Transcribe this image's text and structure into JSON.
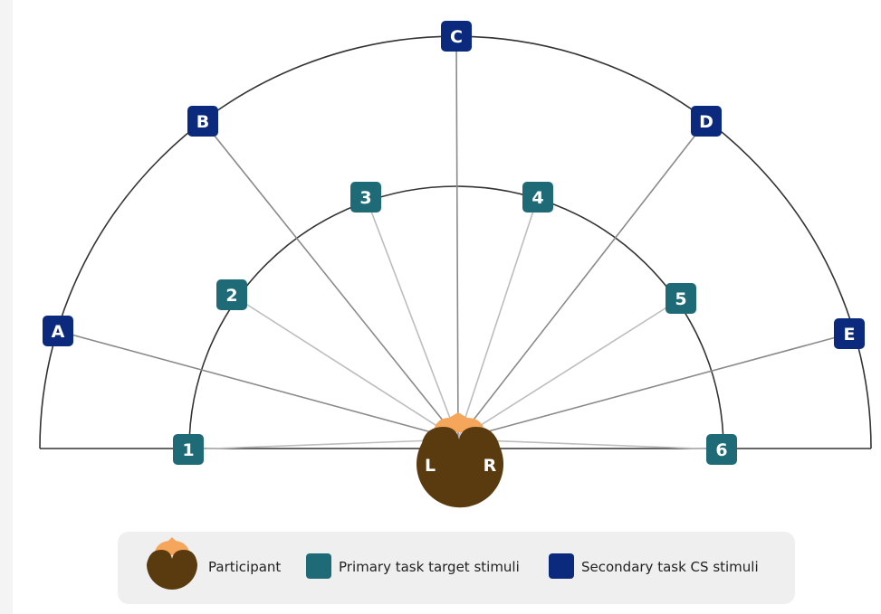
{
  "outer_stimuli": [
    "A",
    "B",
    "C",
    "D",
    "E"
  ],
  "inner_stimuli": [
    "1",
    "2",
    "3",
    "4",
    "5",
    "6"
  ],
  "participant": {
    "left": "L",
    "right": "R"
  },
  "legend": [
    "Participant",
    "Primary task target stimuli",
    "Secondary task CS stimuli"
  ]
}
